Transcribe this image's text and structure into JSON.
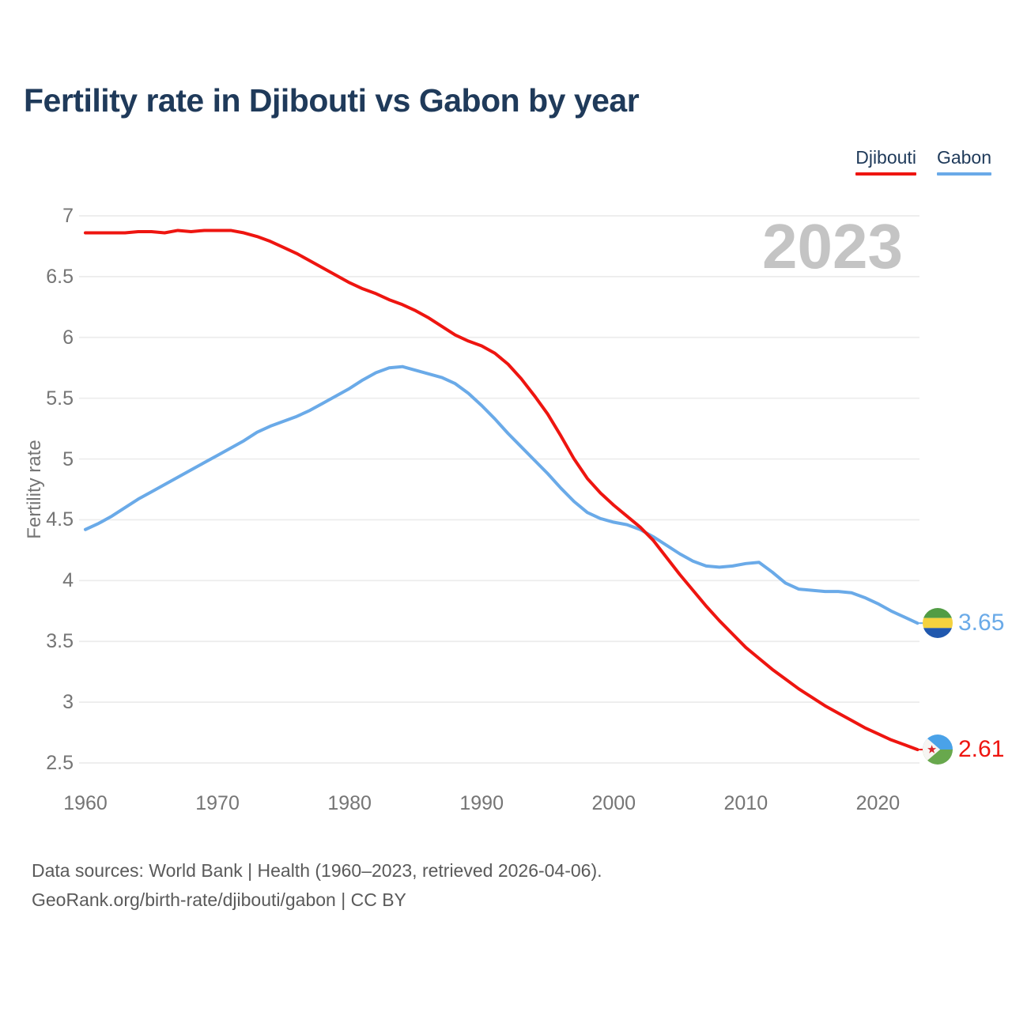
{
  "title": "Fertility rate in Djibouti vs Gabon by year",
  "watermark": "2023",
  "legend": [
    {
      "label": "Djibouti",
      "color": "#ee1510"
    },
    {
      "label": "Gabon",
      "color": "#6aaae8"
    }
  ],
  "footer": {
    "line1": "Data sources: World Bank | Health (1960–2023, retrieved 2026-04-06).",
    "line2": "GeoRank.org/birth-rate/djibouti/gabon | CC BY"
  },
  "chart_data": {
    "type": "line",
    "title": "Fertility rate in Djibouti vs Gabon by year",
    "xlabel": "",
    "ylabel": "Fertility rate",
    "xlim": [
      1960,
      2023
    ],
    "ylim": [
      2.5,
      7
    ],
    "x_ticks": [
      1960,
      1970,
      1980,
      1990,
      2000,
      2010,
      2020
    ],
    "y_ticks": [
      7,
      6.5,
      6,
      5.5,
      5,
      4.5,
      4,
      3.5,
      3,
      2.5
    ],
    "grid": "horizontal",
    "legend_position": "top-right",
    "years": [
      1960,
      1961,
      1962,
      1963,
      1964,
      1965,
      1966,
      1967,
      1968,
      1969,
      1970,
      1971,
      1972,
      1973,
      1974,
      1975,
      1976,
      1977,
      1978,
      1979,
      1980,
      1981,
      1982,
      1983,
      1984,
      1985,
      1986,
      1987,
      1988,
      1989,
      1990,
      1991,
      1992,
      1993,
      1994,
      1995,
      1996,
      1997,
      1998,
      1999,
      2000,
      2001,
      2002,
      2003,
      2004,
      2005,
      2006,
      2007,
      2008,
      2009,
      2010,
      2011,
      2012,
      2013,
      2014,
      2015,
      2016,
      2017,
      2018,
      2019,
      2020,
      2021,
      2022,
      2023
    ],
    "series": [
      {
        "name": "Djibouti",
        "color": "#ee1510",
        "end_label": "2.61",
        "values": [
          6.86,
          6.86,
          6.86,
          6.86,
          6.87,
          6.87,
          6.86,
          6.88,
          6.87,
          6.88,
          6.88,
          6.88,
          6.86,
          6.83,
          6.79,
          6.74,
          6.69,
          6.63,
          6.57,
          6.51,
          6.45,
          6.4,
          6.36,
          6.31,
          6.27,
          6.22,
          6.16,
          6.09,
          6.02,
          5.97,
          5.93,
          5.87,
          5.78,
          5.66,
          5.52,
          5.37,
          5.19,
          5.0,
          4.84,
          4.72,
          4.62,
          4.53,
          4.44,
          4.33,
          4.19,
          4.05,
          3.92,
          3.79,
          3.67,
          3.56,
          3.45,
          3.36,
          3.27,
          3.19,
          3.11,
          3.04,
          2.97,
          2.91,
          2.85,
          2.79,
          2.74,
          2.69,
          2.65,
          2.61
        ]
      },
      {
        "name": "Gabon",
        "color": "#6aaae8",
        "end_label": "3.65",
        "values": [
          4.42,
          4.47,
          4.53,
          4.6,
          4.67,
          4.73,
          4.79,
          4.85,
          4.91,
          4.97,
          5.03,
          5.09,
          5.15,
          5.22,
          5.27,
          5.31,
          5.35,
          5.4,
          5.46,
          5.52,
          5.58,
          5.65,
          5.71,
          5.75,
          5.76,
          5.73,
          5.7,
          5.67,
          5.62,
          5.54,
          5.44,
          5.33,
          5.21,
          5.1,
          4.99,
          4.88,
          4.76,
          4.65,
          4.56,
          4.51,
          4.48,
          4.46,
          4.42,
          4.36,
          4.29,
          4.22,
          4.16,
          4.12,
          4.11,
          4.12,
          4.14,
          4.15,
          4.07,
          3.98,
          3.93,
          3.92,
          3.91,
          3.91,
          3.9,
          3.86,
          3.81,
          3.75,
          3.7,
          3.65
        ]
      }
    ]
  }
}
